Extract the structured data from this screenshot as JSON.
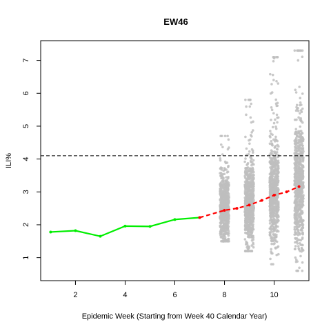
{
  "chart_data": {
    "type": "scatter",
    "title": "EW46",
    "xlabel": "Epidemic Week (Starting from Week 40 Calendar Year)",
    "ylabel": "ILI%",
    "xlim": [
      0.6,
      11.4
    ],
    "ylim": [
      0.3,
      7.6
    ],
    "x_ticks": [
      2,
      4,
      6,
      8,
      10
    ],
    "y_ticks": [
      1,
      2,
      3,
      4,
      5,
      6,
      7
    ],
    "threshold": 4.1,
    "observed": {
      "x": [
        1,
        2,
        3,
        4,
        5,
        6,
        7
      ],
      "y": [
        1.78,
        1.82,
        1.65,
        1.96,
        1.95,
        2.16,
        2.22
      ]
    },
    "forecast": {
      "x": [
        7,
        8,
        8.5,
        9,
        9.5,
        10,
        10.5,
        11
      ],
      "y": [
        2.22,
        2.44,
        2.5,
        2.6,
        2.74,
        2.9,
        3.0,
        3.16
      ]
    },
    "forecast_samples": [
      {
        "x": 8,
        "min": 1.5,
        "q1": 2.1,
        "median": 2.44,
        "q3": 2.8,
        "max": 4.7
      },
      {
        "x": 9,
        "min": 1.2,
        "q1": 2.2,
        "median": 2.6,
        "q3": 3.0,
        "max": 5.8
      },
      {
        "x": 10,
        "min": 0.8,
        "q1": 2.4,
        "median": 2.9,
        "q3": 3.4,
        "max": 7.1
      },
      {
        "x": 11,
        "min": 0.6,
        "q1": 2.5,
        "median": 3.16,
        "q3": 3.8,
        "max": 7.3
      }
    ],
    "colors": {
      "observed": "#00ee00",
      "forecast": "#ff0000",
      "samples": "#bebebe",
      "threshold": "#000000"
    }
  }
}
